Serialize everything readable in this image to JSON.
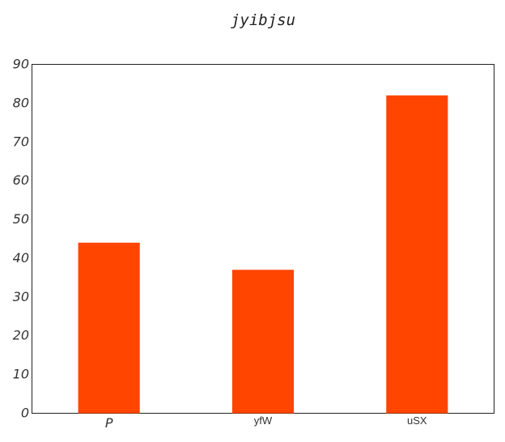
{
  "chart_data": {
    "type": "bar",
    "title": "jyibjsu",
    "categories": [
      "P",
      "yfW",
      "uSX"
    ],
    "values": [
      44,
      37,
      82
    ],
    "xlabel": "",
    "ylabel": "",
    "ylim": [
      0,
      90
    ],
    "yticks": [
      0,
      10,
      20,
      30,
      40,
      50,
      60,
      70,
      80,
      90
    ],
    "bar_color": "#ff4500",
    "grid": false,
    "legend": "none"
  }
}
